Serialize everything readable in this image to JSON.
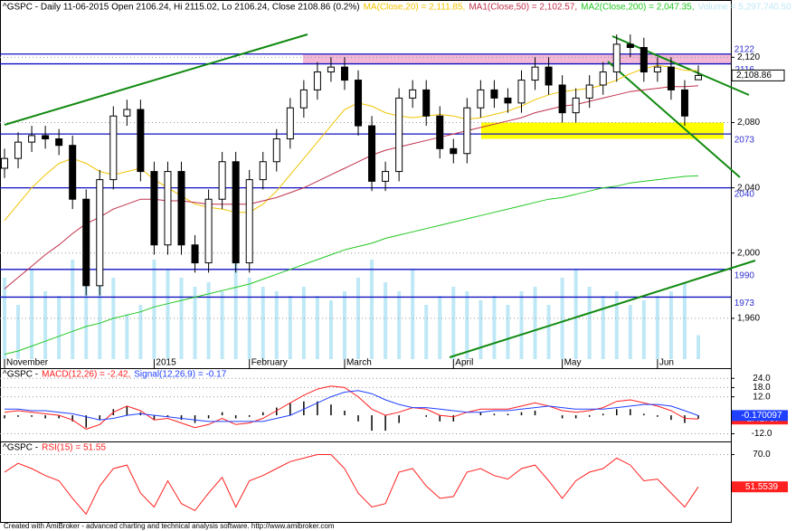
{
  "chart_data": [
    {
      "type": "candlestick",
      "title": "^GSPC - Daily 11-06-2015 Open 2106.24, Hi 2115.02, Lo 2106.24, Close 2108.86 (0.2%)",
      "categories": [
        "November",
        null,
        null,
        null,
        null,
        null,
        null,
        null,
        null,
        null,
        null,
        "2015",
        null,
        null,
        null,
        null,
        null,
        null,
        "February",
        null,
        null,
        null,
        null,
        null,
        null,
        "March",
        null,
        null,
        null,
        null,
        null,
        null,
        null,
        "April",
        null,
        null,
        null,
        null,
        null,
        null,
        null,
        "May",
        null,
        null,
        null,
        null,
        null,
        null,
        "Jun",
        null,
        null,
        null
      ],
      "open": [
        2052,
        2058,
        2068,
        2072,
        2070,
        2066,
        2033,
        1980,
        2045,
        2084,
        2088,
        2050,
        2005,
        2050,
        2005,
        1994,
        2033,
        2056,
        1994,
        2045,
        2056,
        2070,
        2089,
        2100,
        2111,
        2114,
        2106,
        2078,
        2044,
        2050,
        2095,
        2100,
        2084,
        2064,
        2061,
        2089,
        2100,
        2095,
        2092,
        2106,
        2114,
        2103,
        2086,
        2095,
        2103,
        2111,
        2128,
        2126,
        2111,
        2114,
        2100,
        2106.24
      ],
      "high": [
        2064,
        2074,
        2078,
        2078,
        2076,
        2072,
        2039,
        2051,
        2090,
        2094,
        2094,
        2056,
        2056,
        2056,
        2011,
        2039,
        2062,
        2062,
        2051,
        2062,
        2076,
        2095,
        2106,
        2117,
        2120,
        2120,
        2112,
        2084,
        2056,
        2101,
        2106,
        2106,
        2090,
        2070,
        2095,
        2106,
        2106,
        2101,
        2112,
        2120,
        2120,
        2109,
        2101,
        2109,
        2117,
        2134,
        2134,
        2132,
        2120,
        2120,
        2106,
        2115.02
      ],
      "low": [
        2046,
        2052,
        2062,
        2064,
        2060,
        2027,
        1974,
        1974,
        2039,
        2078,
        2044,
        1999,
        1999,
        1999,
        1988,
        1988,
        2027,
        1988,
        1988,
        2039,
        2050,
        2064,
        2083,
        2094,
        2105,
        2100,
        2072,
        2038,
        2038,
        2044,
        2089,
        2078,
        2058,
        2055,
        2055,
        2083,
        2089,
        2086,
        2086,
        2100,
        2097,
        2080,
        2080,
        2089,
        2097,
        2105,
        2120,
        2105,
        2105,
        2094,
        2078,
        2106.24
      ],
      "close": [
        2058,
        2068,
        2072,
        2070,
        2066,
        2033,
        1980,
        2045,
        2084,
        2088,
        2050,
        2005,
        2050,
        2005,
        1994,
        2033,
        2056,
        1994,
        2045,
        2056,
        2070,
        2089,
        2100,
        2111,
        2114,
        2106,
        2078,
        2044,
        2050,
        2095,
        2100,
        2084,
        2064,
        2061,
        2089,
        2100,
        2095,
        2092,
        2106,
        2114,
        2103,
        2086,
        2095,
        2103,
        2111,
        2128,
        2126,
        2111,
        2114,
        2100,
        2084,
        2108.86
      ],
      "series": [
        {
          "name": "MA(Close,20) = 2,111.85,",
          "color": "#f2c400",
          "values": [
            2020,
            2030,
            2040,
            2048,
            2055,
            2058,
            2055,
            2050,
            2048,
            2050,
            2052,
            2045,
            2040,
            2035,
            2030,
            2028,
            2027,
            2025,
            2025,
            2030,
            2038,
            2048,
            2058,
            2068,
            2078,
            2088,
            2092,
            2090,
            2086,
            2084,
            2083,
            2084,
            2085,
            2084,
            2082,
            2083,
            2085,
            2087,
            2090,
            2094,
            2097,
            2099,
            2100,
            2101,
            2103,
            2106,
            2110,
            2113,
            2115,
            2114,
            2112,
            2111.85
          ]
        },
        {
          "name": "MA1(Close,50) = 2,102.57,",
          "color": "#c0304a",
          "values": [
            1978,
            1985,
            1992,
            1999,
            2005,
            2012,
            2018,
            2022,
            2027,
            2030,
            2033,
            2033,
            2032,
            2032,
            2031,
            2030,
            2030,
            2030,
            2030,
            2032,
            2034,
            2037,
            2040,
            2044,
            2048,
            2052,
            2056,
            2060,
            2063,
            2065,
            2067,
            2069,
            2071,
            2073,
            2075,
            2077,
            2079,
            2081,
            2083,
            2086,
            2088,
            2090,
            2091,
            2093,
            2095,
            2097,
            2099,
            2100,
            2101,
            2102,
            2102,
            2102.57
          ]
        },
        {
          "name": "MA2(Close,200) = 2,047.35,",
          "color": "#22c822",
          "values": [
            1938,
            1940,
            1943,
            1946,
            1949,
            1952,
            1955,
            1957,
            1960,
            1962,
            1964,
            1967,
            1969,
            1971,
            1973,
            1975,
            1977,
            1979,
            1981,
            1984,
            1987,
            1990,
            1993,
            1996,
            1999,
            2002,
            2004,
            2006,
            2009,
            2011,
            2013,
            2015,
            2017,
            2019,
            2021,
            2023,
            2025,
            2027,
            2029,
            2031,
            2033,
            2034,
            2036,
            2038,
            2040,
            2041,
            2043,
            2044,
            2045,
            2046,
            2047,
            2047.35
          ]
        }
      ],
      "volume": {
        "name": "Volume = 5,297,740.50",
        "color": "#bfe8f6",
        "values": [
          18000000,
          12000000,
          20000000,
          15000000,
          14000000,
          22000000,
          30000000,
          25000000,
          18000000,
          10000000,
          12000000,
          22000000,
          20000000,
          18000000,
          16000000,
          17000000,
          15000000,
          22000000,
          18000000,
          16000000,
          15000000,
          14000000,
          16000000,
          14000000,
          13000000,
          15000000,
          18000000,
          22000000,
          17000000,
          15000000,
          20000000,
          12000000,
          14000000,
          16000000,
          15000000,
          13000000,
          14000000,
          12000000,
          15000000,
          16000000,
          12000000,
          18000000,
          20000000,
          16000000,
          14000000,
          15000000,
          12000000,
          13000000,
          14000000,
          15000000,
          17000000,
          5297740.5
        ]
      },
      "ylim": [
        1935,
        2154
      ],
      "yticks": [
        {
          "value": 2120,
          "label": "2,120"
        },
        {
          "value": 2080,
          "label": "2,080"
        },
        {
          "value": 2040,
          "label": "2,040"
        },
        {
          "value": 2000,
          "label": "2,000"
        },
        {
          "value": 1960,
          "label": "1,960"
        }
      ],
      "levels": [
        2122,
        2116,
        2073,
        2040,
        1990,
        1973
      ],
      "last_price": {
        "value": 2108.86,
        "label": "2,108.86"
      },
      "grid": true
    },
    {
      "type": "line",
      "title": "^GSPC -",
      "series": [
        {
          "name": "MACD(12,26) = -2.42,",
          "color": "#ff2020",
          "last": -2.41787,
          "values": [
            2,
            3,
            2,
            1,
            0,
            -3,
            -9,
            -6,
            2,
            6,
            3,
            -3,
            -2,
            -5,
            -8,
            -6,
            -2,
            -6,
            -5,
            -2,
            3,
            8,
            13,
            17,
            19,
            18,
            12,
            4,
            0,
            2,
            5,
            4,
            0,
            -1,
            2,
            4,
            4,
            4,
            6,
            8,
            6,
            3,
            2,
            3,
            5,
            9,
            10,
            8,
            6,
            3,
            -2,
            -2.42
          ]
        },
        {
          "name": "Signal(12,26,9) = -0.17",
          "color": "#2040ff",
          "last": -0.170097,
          "values": [
            4,
            4,
            3,
            3,
            2,
            1,
            -1,
            -3,
            -2,
            0,
            1,
            0,
            -1,
            -2,
            -3,
            -4,
            -4,
            -4,
            -4,
            -4,
            -2,
            0,
            4,
            8,
            12,
            15,
            16,
            14,
            10,
            7,
            5,
            5,
            4,
            3,
            2,
            2,
            3,
            3,
            4,
            5,
            6,
            5,
            4,
            4,
            4,
            5,
            6,
            7,
            7,
            6,
            3,
            -0.17
          ]
        }
      ],
      "histogram": {
        "color": "#000000",
        "values": [
          -2,
          -1,
          -1,
          -2,
          -2,
          -4,
          -8,
          -3,
          4,
          6,
          2,
          -3,
          -1,
          -3,
          -5,
          -2,
          2,
          -2,
          -1,
          2,
          5,
          8,
          9,
          9,
          7,
          3,
          -4,
          -10,
          -10,
          -5,
          0,
          -1,
          -4,
          -4,
          0,
          2,
          1,
          1,
          2,
          3,
          0,
          -2,
          -2,
          -1,
          1,
          4,
          4,
          1,
          -1,
          -3,
          -5,
          -2.25
        ]
      },
      "ylim": [
        -17,
        30
      ],
      "yticks": [
        {
          "value": 24,
          "label": "24.0"
        },
        {
          "value": 18,
          "label": "18.0"
        },
        {
          "value": 12,
          "label": "12.0"
        },
        {
          "value": -12,
          "label": "-12.0"
        }
      ],
      "grid": true
    },
    {
      "type": "line",
      "title": "^GSPC -",
      "series": [
        {
          "name": "RSI(15) = 51.55",
          "color": "#ff2020",
          "last": 51.5539,
          "values": [
            60,
            65,
            62,
            58,
            55,
            45,
            36,
            52,
            62,
            64,
            48,
            40,
            55,
            42,
            38,
            48,
            57,
            40,
            55,
            58,
            62,
            66,
            68,
            70,
            70,
            62,
            48,
            40,
            42,
            60,
            62,
            52,
            45,
            46,
            60,
            62,
            58,
            56,
            62,
            64,
            55,
            45,
            55,
            60,
            62,
            68,
            64,
            55,
            56,
            48,
            40,
            51.55
          ]
        }
      ],
      "ylim": [
        32,
        77
      ],
      "yticks": [
        {
          "value": 70,
          "label": "70.0"
        }
      ],
      "grid": true
    }
  ],
  "footer": "Created with AmiBroker - advanced charting and technical analysis software. http://www.amibroker.com"
}
